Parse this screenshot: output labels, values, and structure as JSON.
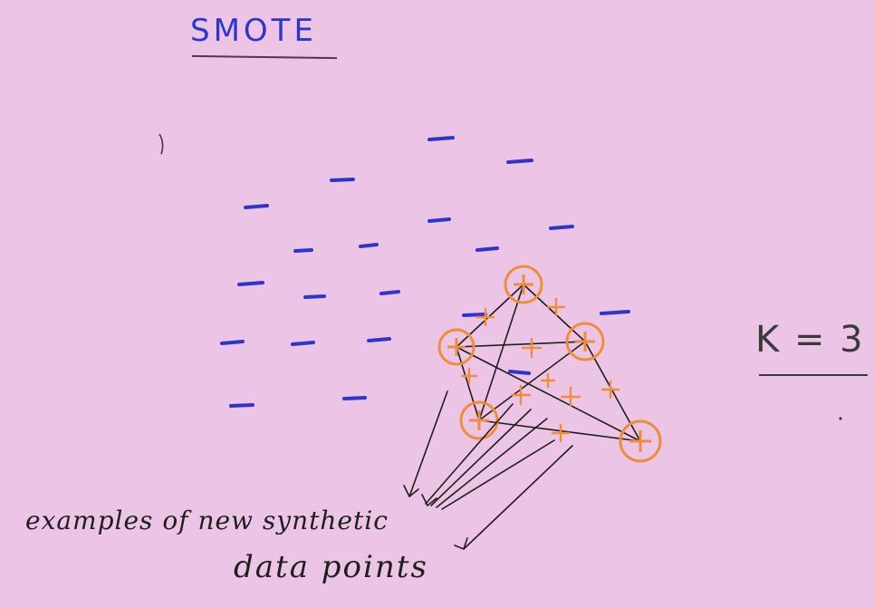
{
  "title": "SMOTE",
  "k_label": "K = 3",
  "caption": {
    "line1": "examples of new synthetic",
    "line2": "data points"
  },
  "colors": {
    "background": "#ecc4e6",
    "majority": "#2f35c9",
    "minority": "#ee8e3a",
    "ink": "#1e1e1e"
  },
  "legend": {
    "majority_class_symbol": "−",
    "minority_class_symbol": "+"
  }
}
